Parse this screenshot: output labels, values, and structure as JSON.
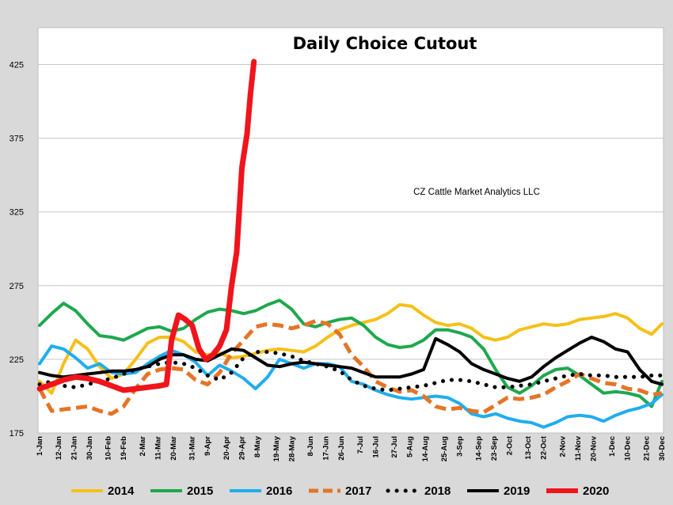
{
  "chart_data": {
    "type": "line",
    "title": "Daily Choice Cutout",
    "annotation": "CZ Cattle Market Analytics LLC",
    "xlabel": "",
    "ylabel": "",
    "ylim": [
      175,
      450
    ],
    "yticks": [
      175,
      225,
      275,
      325,
      375,
      425
    ],
    "grid": "horizontal",
    "legend_position": "bottom",
    "xlim_day": [
      1,
      364
    ],
    "x_ticks": [
      {
        "label": "1-Jan",
        "day": 1
      },
      {
        "label": "12-Jan",
        "day": 12
      },
      {
        "label": "21-Jan",
        "day": 21
      },
      {
        "label": "30-Jan",
        "day": 30
      },
      {
        "label": "10-Feb",
        "day": 41
      },
      {
        "label": "19-Feb",
        "day": 50
      },
      {
        "label": "2-Mar",
        "day": 61
      },
      {
        "label": "11-Mar",
        "day": 70
      },
      {
        "label": "20-Mar",
        "day": 79
      },
      {
        "label": "31-Mar",
        "day": 90
      },
      {
        "label": "9-Apr",
        "day": 99
      },
      {
        "label": "20-Apr",
        "day": 110
      },
      {
        "label": "29-Apr",
        "day": 119
      },
      {
        "label": "8-May",
        "day": 128
      },
      {
        "label": "19-May",
        "day": 139
      },
      {
        "label": "28-May",
        "day": 148
      },
      {
        "label": "8-Jun",
        "day": 159
      },
      {
        "label": "17-Jun",
        "day": 168
      },
      {
        "label": "26-Jun",
        "day": 177
      },
      {
        "label": "7-Jul",
        "day": 188
      },
      {
        "label": "16-Jul",
        "day": 197
      },
      {
        "label": "27-Jul",
        "day": 208
      },
      {
        "label": "5-Aug",
        "day": 217
      },
      {
        "label": "14-Aug",
        "day": 226
      },
      {
        "label": "25-Aug",
        "day": 237
      },
      {
        "label": "3-Sep",
        "day": 246
      },
      {
        "label": "14-Sep",
        "day": 257
      },
      {
        "label": "23-Sep",
        "day": 266
      },
      {
        "label": "2-Oct",
        "day": 275
      },
      {
        "label": "13-Oct",
        "day": 286
      },
      {
        "label": "22-Oct",
        "day": 295
      },
      {
        "label": "2-Nov",
        "day": 306
      },
      {
        "label": "11-Nov",
        "day": 315
      },
      {
        "label": "20-Nov",
        "day": 324
      },
      {
        "label": "1-Dec",
        "day": 335
      },
      {
        "label": "10-Dec",
        "day": 344
      },
      {
        "label": "21-Dec",
        "day": 355
      },
      {
        "label": "30-Dec",
        "day": 364
      }
    ],
    "series": [
      {
        "name": "2014",
        "color": "#f5c017",
        "style": "solid",
        "x": [
          1,
          8,
          15,
          22,
          29,
          36,
          43,
          50,
          57,
          64,
          71,
          78,
          85,
          92,
          99,
          106,
          113,
          120,
          127,
          134,
          141,
          148,
          155,
          162,
          169,
          176,
          183,
          190,
          197,
          204,
          211,
          218,
          225,
          232,
          239,
          246,
          253,
          260,
          267,
          274,
          281,
          288,
          295,
          302,
          309,
          316,
          323,
          330,
          337,
          344,
          351,
          358,
          364
        ],
        "y": [
          210,
          202,
          222,
          238,
          232,
          220,
          212,
          215,
          225,
          236,
          240,
          240,
          237,
          230,
          228,
          229,
          226,
          227,
          229,
          231,
          232,
          231,
          230,
          234,
          240,
          245,
          248,
          250,
          252,
          256,
          262,
          261,
          255,
          250,
          248,
          249,
          246,
          240,
          238,
          240,
          245,
          247,
          249,
          248,
          249,
          252,
          253,
          254,
          256,
          253,
          246,
          242,
          249
        ]
      },
      {
        "name": "2015",
        "color": "#1ea84e",
        "style": "solid",
        "x": [
          1,
          8,
          15,
          22,
          29,
          36,
          43,
          50,
          57,
          64,
          71,
          78,
          85,
          92,
          99,
          106,
          113,
          120,
          127,
          134,
          141,
          148,
          155,
          162,
          169,
          176,
          183,
          190,
          197,
          204,
          211,
          218,
          225,
          232,
          239,
          246,
          253,
          260,
          267,
          274,
          281,
          288,
          295,
          302,
          309,
          316,
          323,
          330,
          337,
          344,
          351,
          358,
          364
        ],
        "y": [
          248,
          256,
          263,
          258,
          249,
          241,
          240,
          238,
          242,
          246,
          247,
          244,
          246,
          252,
          257,
          259,
          258,
          256,
          258,
          262,
          265,
          259,
          249,
          247,
          250,
          252,
          253,
          248,
          240,
          235,
          233,
          234,
          238,
          245,
          245,
          243,
          240,
          232,
          218,
          206,
          202,
          207,
          214,
          218,
          219,
          214,
          208,
          202,
          203,
          202,
          200,
          193,
          210
        ]
      },
      {
        "name": "2016",
        "color": "#1fadef",
        "style": "solid",
        "x": [
          1,
          8,
          15,
          22,
          29,
          36,
          43,
          50,
          57,
          64,
          71,
          78,
          85,
          92,
          99,
          106,
          113,
          120,
          127,
          134,
          141,
          148,
          155,
          162,
          169,
          176,
          183,
          190,
          197,
          204,
          211,
          218,
          225,
          232,
          239,
          246,
          253,
          260,
          267,
          274,
          281,
          288,
          295,
          302,
          309,
          316,
          323,
          330,
          337,
          344,
          351,
          358,
          364
        ],
        "y": [
          222,
          234,
          232,
          226,
          219,
          222,
          216,
          215,
          216,
          222,
          227,
          231,
          228,
          223,
          214,
          221,
          217,
          212,
          205,
          213,
          225,
          222,
          219,
          222,
          222,
          220,
          210,
          208,
          204,
          201,
          199,
          198,
          199,
          200,
          199,
          195,
          188,
          186,
          188,
          185,
          183,
          182,
          179,
          182,
          186,
          187,
          186,
          183,
          187,
          190,
          192,
          195,
          201
        ]
      },
      {
        "name": "2017",
        "color": "#e57427",
        "style": "dashed",
        "x": [
          1,
          8,
          15,
          22,
          29,
          36,
          43,
          50,
          57,
          64,
          71,
          78,
          85,
          92,
          99,
          106,
          113,
          120,
          127,
          134,
          141,
          148,
          155,
          162,
          169,
          176,
          183,
          190,
          197,
          204,
          211,
          218,
          225,
          232,
          239,
          246,
          253,
          260,
          267,
          274,
          281,
          288,
          295,
          302,
          309,
          316,
          323,
          330,
          337,
          344,
          351,
          358,
          364
        ],
        "y": [
          205,
          190,
          191,
          192,
          193,
          190,
          188,
          193,
          205,
          215,
          218,
          219,
          218,
          211,
          208,
          216,
          229,
          238,
          247,
          249,
          248,
          246,
          248,
          251,
          249,
          242,
          228,
          220,
          210,
          206,
          203,
          204,
          200,
          193,
          191,
          192,
          190,
          189,
          194,
          199,
          198,
          199,
          201,
          206,
          210,
          215,
          212,
          209,
          208,
          205,
          204,
          201,
          202
        ]
      },
      {
        "name": "2018",
        "color": "#000000",
        "style": "dotted",
        "x": [
          1,
          8,
          15,
          22,
          29,
          36,
          43,
          50,
          57,
          64,
          71,
          78,
          85,
          92,
          99,
          106,
          113,
          120,
          127,
          134,
          141,
          148,
          155,
          162,
          169,
          176,
          183,
          190,
          197,
          204,
          211,
          218,
          225,
          232,
          239,
          246,
          253,
          260,
          267,
          274,
          281,
          288,
          295,
          302,
          309,
          316,
          323,
          330,
          337,
          344,
          351,
          358,
          364
        ],
        "y": [
          208,
          210,
          207,
          206,
          208,
          210,
          212,
          215,
          218,
          220,
          222,
          223,
          222,
          219,
          214,
          211,
          216,
          226,
          230,
          230,
          229,
          227,
          224,
          222,
          220,
          217,
          211,
          207,
          205,
          204,
          205,
          206,
          207,
          209,
          211,
          211,
          210,
          208,
          206,
          206,
          207,
          208,
          210,
          212,
          214,
          215,
          214,
          214,
          213,
          213,
          213,
          214,
          214
        ]
      },
      {
        "name": "2019",
        "color": "#000000",
        "style": "solid",
        "x": [
          1,
          8,
          15,
          22,
          29,
          36,
          43,
          50,
          57,
          64,
          71,
          78,
          85,
          92,
          99,
          106,
          113,
          120,
          127,
          134,
          141,
          148,
          155,
          162,
          169,
          176,
          183,
          190,
          197,
          204,
          211,
          218,
          225,
          232,
          239,
          246,
          253,
          260,
          267,
          274,
          281,
          288,
          295,
          302,
          309,
          316,
          323,
          330,
          337,
          344,
          351,
          358,
          364
        ],
        "y": [
          216,
          214,
          213,
          214,
          215,
          216,
          217,
          217,
          218,
          220,
          225,
          228,
          228,
          225,
          224,
          228,
          232,
          231,
          226,
          221,
          220,
          222,
          223,
          222,
          221,
          220,
          219,
          216,
          213,
          213,
          213,
          215,
          218,
          239,
          235,
          230,
          222,
          218,
          215,
          212,
          210,
          213,
          220,
          226,
          231,
          236,
          240,
          237,
          232,
          230,
          218,
          210,
          208
        ]
      },
      {
        "name": "2020",
        "color": "#f0141c",
        "style": "solid",
        "x": [
          1,
          8,
          15,
          22,
          29,
          36,
          43,
          50,
          57,
          64,
          71,
          75,
          78,
          82,
          86,
          90,
          94,
          98,
          102,
          106,
          110,
          113,
          116,
          119,
          122,
          124,
          126
        ],
        "y": [
          205,
          208,
          211,
          213,
          212,
          210,
          207,
          204,
          205,
          206,
          207,
          208,
          238,
          255,
          252,
          248,
          232,
          225,
          228,
          234,
          245,
          275,
          298,
          355,
          378,
          405,
          427
        ]
      }
    ]
  }
}
